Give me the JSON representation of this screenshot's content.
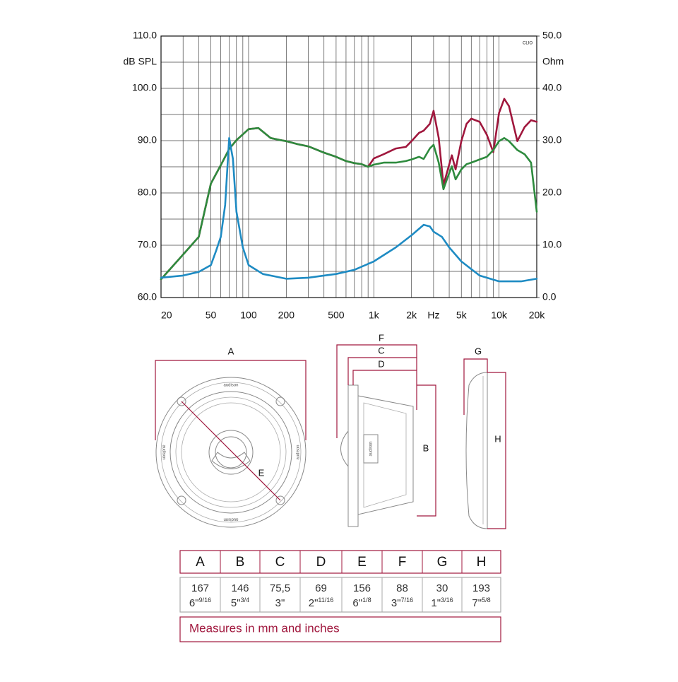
{
  "chart_data": {
    "type": "line",
    "y_label": "dB SPL",
    "y2_label": "Ohm",
    "watermark": "CLIO",
    "xscale": "log",
    "xlim": [
      20,
      20000
    ],
    "xticks": [
      20,
      50,
      100,
      200,
      500,
      {
        "value": 1000,
        "label": "1k"
      },
      {
        "value": 2000,
        "label": "2k"
      },
      {
        "value": 3000,
        "label": "Hz"
      },
      {
        "value": 5000,
        "label": "5k"
      },
      {
        "value": 10000,
        "label": "10k"
      },
      {
        "value": 20000,
        "label": "20k"
      }
    ],
    "x_minor_ticks": [
      30,
      40,
      60,
      70,
      80,
      90,
      300,
      400,
      600,
      700,
      800,
      900,
      4000,
      6000,
      7000,
      8000,
      9000
    ],
    "ylim": [
      60,
      110
    ],
    "yticks": [
      {
        "value": 60,
        "label": "60.0"
      },
      {
        "value": 70,
        "label": "70.0"
      },
      {
        "value": 80,
        "label": "80.0"
      },
      {
        "value": 90,
        "label": "90.0"
      },
      {
        "value": 100,
        "label": "100.0"
      },
      {
        "value": 110,
        "label": "110.0"
      }
    ],
    "y_minor_ticks": [
      65,
      75,
      85,
      95,
      105
    ],
    "y2lim": [
      0,
      50
    ],
    "y2ticks": [
      {
        "value": 0,
        "label": "0.0"
      },
      {
        "value": 10,
        "label": "10.0"
      },
      {
        "value": 20,
        "label": "20.0"
      },
      {
        "value": 30,
        "label": "30.0"
      },
      {
        "value": 40,
        "label": "40.0"
      },
      {
        "value": 50,
        "label": "50.0"
      }
    ],
    "grid": true,
    "series": [
      {
        "color": "#a0173d",
        "x": [
          20,
          30,
          40,
          50,
          60,
          70,
          80,
          100,
          120,
          150,
          180,
          200,
          250,
          300,
          400,
          500,
          600,
          700,
          800,
          900,
          1000,
          1200,
          1500,
          1800,
          2000,
          2300,
          2500,
          2800,
          3000,
          3300,
          3600,
          3900,
          4200,
          4500,
          5000,
          5500,
          6000,
          7000,
          8000,
          9000,
          10000,
          11000,
          12000,
          14000,
          16000,
          18000,
          20000
        ],
        "values": [
          63.5,
          68.2,
          71.6,
          81.8,
          85.3,
          88.4,
          90.1,
          92.2,
          92.4,
          90.5,
          90.1,
          89.9,
          89.3,
          88.9,
          87.7,
          86.9,
          86.1,
          85.7,
          85.5,
          85.0,
          86.6,
          87.4,
          88.5,
          88.8,
          89.9,
          91.5,
          91.9,
          93.2,
          95.7,
          90.5,
          81.5,
          84.5,
          87.2,
          84.5,
          89.9,
          93.2,
          94.2,
          93.6,
          91.1,
          87.8,
          95.3,
          98.0,
          96.6,
          89.9,
          92.6,
          93.9,
          93.6
        ]
      },
      {
        "color": "#2e8b3e",
        "x": [
          20,
          30,
          40,
          50,
          60,
          70,
          80,
          100,
          120,
          150,
          180,
          200,
          250,
          300,
          400,
          500,
          600,
          700,
          800,
          900,
          1000,
          1200,
          1500,
          1800,
          2000,
          2300,
          2500,
          2800,
          3000,
          3300,
          3600,
          3900,
          4200,
          4500,
          5000,
          5500,
          6000,
          7000,
          8000,
          9000,
          10000,
          11000,
          12000,
          14000,
          16000,
          18000,
          20000
        ],
        "values": [
          63.5,
          68.2,
          71.6,
          81.8,
          85.3,
          88.4,
          90.1,
          92.2,
          92.4,
          90.5,
          90.1,
          89.9,
          89.3,
          88.9,
          87.7,
          86.9,
          86.1,
          85.7,
          85.5,
          85.0,
          85.4,
          85.8,
          85.8,
          86.1,
          86.4,
          86.9,
          86.5,
          88.5,
          89.2,
          85.8,
          80.7,
          83.1,
          85.1,
          82.6,
          84.5,
          85.5,
          85.8,
          86.4,
          86.9,
          88.2,
          89.9,
          90.5,
          89.9,
          88.2,
          87.4,
          85.8,
          76.4
        ]
      },
      {
        "color": "#1e8bc3",
        "axis": "y2",
        "x": [
          20,
          30,
          40,
          50,
          55,
          60,
          65,
          70,
          75,
          80,
          90,
          100,
          130,
          200,
          300,
          400,
          500,
          700,
          1000,
          1500,
          2000,
          2500,
          2800,
          3000,
          3500,
          4000,
          5000,
          7000,
          10000,
          15000,
          20000
        ],
        "values": [
          3.8,
          4.2,
          4.9,
          6.2,
          8.9,
          11.6,
          17.7,
          30.5,
          26.5,
          16.4,
          9.6,
          6.2,
          4.5,
          3.6,
          3.8,
          4.2,
          4.5,
          5.3,
          6.9,
          9.6,
          11.9,
          13.9,
          13.6,
          12.6,
          11.6,
          9.6,
          6.9,
          4.2,
          3.1,
          3.1,
          3.6
        ]
      }
    ]
  },
  "drawing": {
    "dimension_labels": [
      "A",
      "B",
      "C",
      "D",
      "E",
      "F",
      "G",
      "H"
    ],
    "brand": "audison"
  },
  "table": {
    "header": [
      "A",
      "B",
      "C",
      "D",
      "E",
      "F",
      "G",
      "H"
    ],
    "rows": [
      {
        "mm": "167",
        "inch": "6\"",
        "fraction": "9/16"
      },
      {
        "mm": "146",
        "inch": "5\"",
        "fraction": "3/4"
      },
      {
        "mm": "75,5",
        "inch": "3\"",
        "fraction": ""
      },
      {
        "mm": "69",
        "inch": "2\"",
        "fraction": "11/16"
      },
      {
        "mm": "156",
        "inch": "6\"",
        "fraction": "1/8"
      },
      {
        "mm": "88",
        "inch": "3\"",
        "fraction": "7/16"
      },
      {
        "mm": "30",
        "inch": "1\"",
        "fraction": "3/16"
      },
      {
        "mm": "193",
        "inch": "7\"",
        "fraction": "5/8"
      }
    ],
    "note": "Measures in mm and inches"
  }
}
